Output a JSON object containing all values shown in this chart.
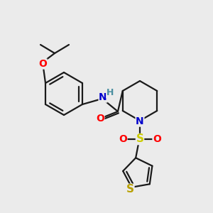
{
  "bg_color": "#ebebeb",
  "bond_color": "#1a1a1a",
  "atom_colors": {
    "O": "#ff0000",
    "N": "#0000cd",
    "S_sulfonyl": "#cccc00",
    "S_thiophene": "#b8a000",
    "H": "#4a8fa0",
    "C": "#1a1a1a"
  },
  "figsize": [
    3.0,
    3.0
  ],
  "dpi": 100
}
